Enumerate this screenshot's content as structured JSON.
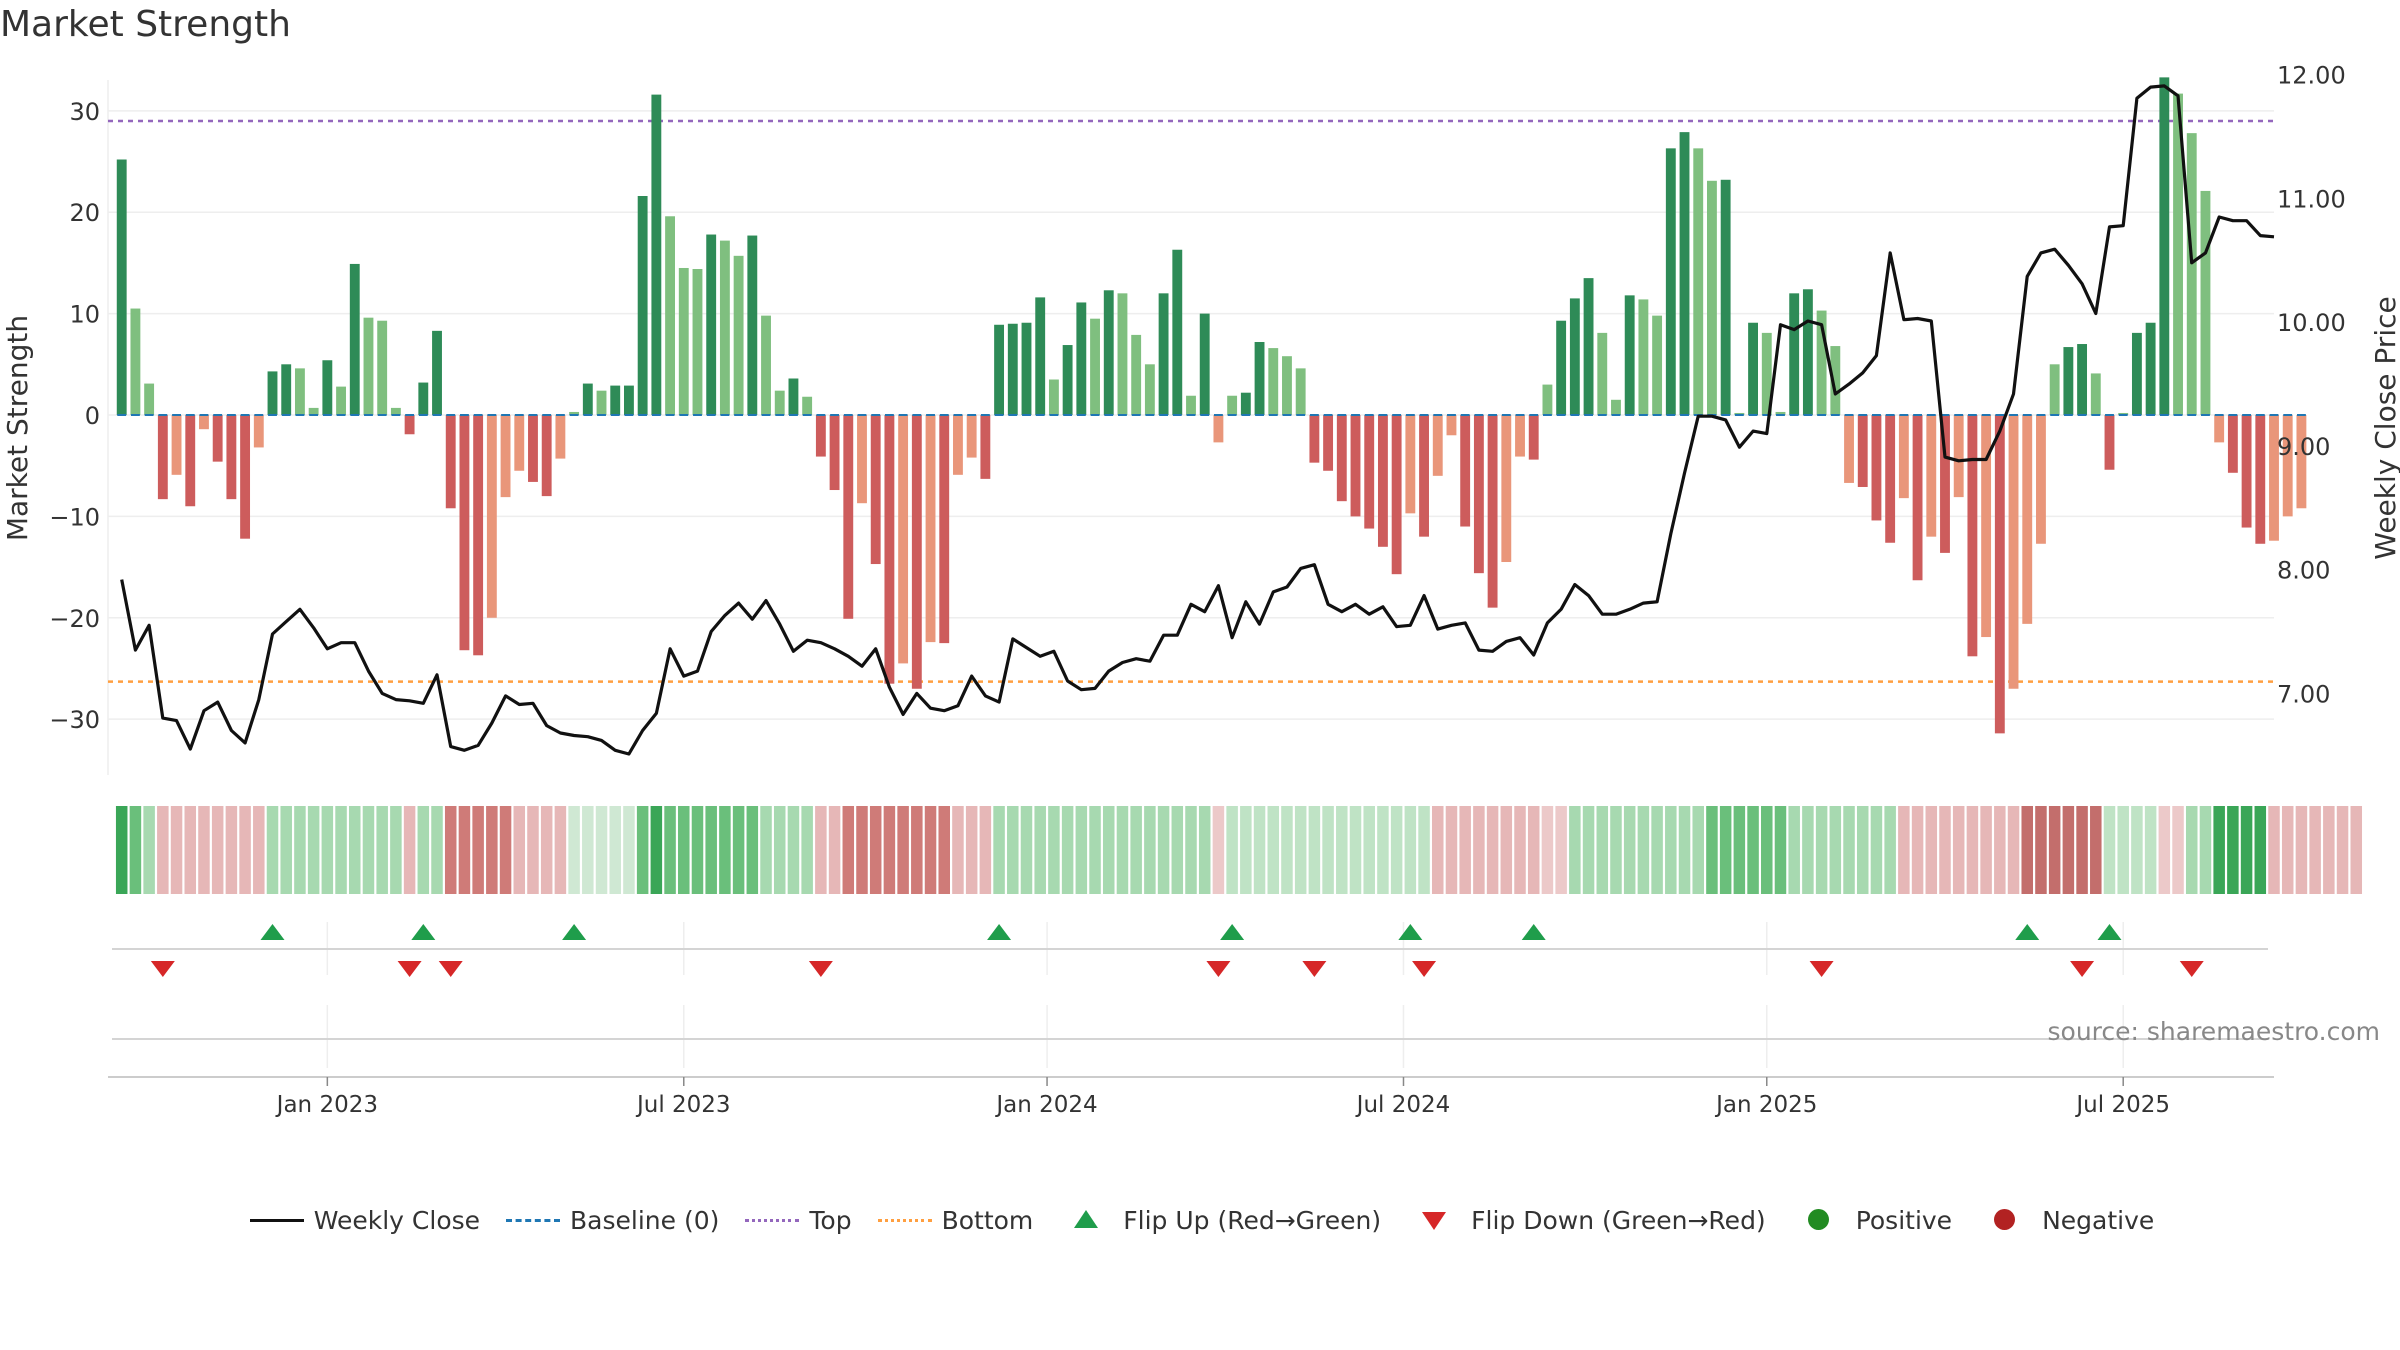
{
  "page": {
    "title": "Market Strength"
  },
  "chart_data": {
    "type": "bar+line",
    "title": "Market Strength",
    "ylabel_left": "Market Strength",
    "ylabel_right": "Weekly Close Price",
    "ylim_left": [
      -36,
      36
    ],
    "ylim_right": [
      6.3,
      12.2
    ],
    "yticks_left": [
      -30,
      -20,
      -10,
      0,
      10,
      20,
      30
    ],
    "ytick_labels_left": [
      "−30",
      "−20",
      "−10",
      "0",
      "10",
      "20",
      "30"
    ],
    "yticks_right": [
      7,
      8,
      9,
      10,
      11,
      12
    ],
    "ytick_labels_right": [
      "7.00",
      "8.00",
      "9.00",
      "10.00",
      "11.00",
      "12.00"
    ],
    "x_range": [
      -1,
      157
    ],
    "x_ticks": [
      15,
      41,
      67.5,
      93.5,
      120,
      146
    ],
    "x_tick_labels": [
      "Jan 2023",
      "Jul 2023",
      "Jan 2024",
      "Jul 2024",
      "Jan 2025",
      "Jul 2025"
    ],
    "top_threshold": 29,
    "bottom_threshold": -26.3,
    "strength": [
      25.2,
      10.5,
      3.1,
      -8.3,
      -5.9,
      -9.0,
      -1.4,
      -4.6,
      -8.3,
      -12.2,
      -3.2,
      4.3,
      5.0,
      4.6,
      0.7,
      5.4,
      2.8,
      14.9,
      9.6,
      9.3,
      0.7,
      -1.9,
      3.2,
      8.3,
      -9.2,
      -23.2,
      -23.7,
      -20.0,
      -8.1,
      -5.5,
      -6.6,
      -8.0,
      -4.3,
      0.3,
      3.1,
      2.4,
      2.9,
      2.9,
      21.6,
      31.6,
      19.6,
      14.5,
      14.4,
      17.8,
      17.2,
      15.7,
      17.7,
      9.8,
      2.4,
      3.6,
      1.8,
      -4.1,
      -7.4,
      -20.1,
      -8.7,
      -14.7,
      -26.5,
      -24.5,
      -27.0,
      -22.4,
      -22.5,
      -5.9,
      -4.2,
      -6.3,
      8.9,
      9.0,
      9.1,
      11.6,
      3.5,
      6.9,
      11.1,
      9.5,
      12.3,
      12.0,
      7.9,
      5.0,
      12.0,
      16.3,
      1.9,
      10.0,
      -2.7,
      1.9,
      2.2,
      7.2,
      6.6,
      5.8,
      4.6,
      -4.7,
      -5.5,
      -8.5,
      -10.0,
      -11.2,
      -13.0,
      -15.7,
      -9.7,
      -12.0,
      -6.0,
      -2.0,
      -11.0,
      -15.6,
      -19.0,
      -14.5,
      -4.1,
      -4.4,
      3.0,
      9.3,
      11.5,
      13.5,
      8.1,
      1.5,
      11.8,
      11.4,
      9.8,
      26.3,
      27.9,
      26.3,
      23.1,
      23.2,
      0.2,
      9.1,
      8.1,
      0.3,
      12.0,
      12.4,
      10.3,
      6.8,
      -6.7,
      -7.1,
      -10.4,
      -12.6,
      -8.2,
      -16.3,
      -12.0,
      -13.6,
      -8.1,
      -23.8,
      -21.9,
      -31.4,
      -27.0,
      -20.6,
      -12.7,
      5.0,
      6.7,
      7.0,
      4.1,
      -5.4,
      0.2,
      8.1,
      9.1,
      33.3,
      31.7,
      27.8,
      22.1,
      -2.7,
      -5.7,
      -11.1,
      -12.7,
      -12.4,
      -10.0,
      -9.2
    ],
    "close": [
      7.92,
      7.35,
      7.55,
      6.8,
      6.78,
      6.55,
      6.86,
      6.93,
      6.7,
      6.6,
      6.95,
      7.48,
      7.58,
      7.68,
      7.53,
      7.36,
      7.41,
      7.41,
      7.18,
      7.0,
      6.95,
      6.94,
      6.92,
      7.15,
      6.57,
      6.54,
      6.58,
      6.76,
      6.98,
      6.91,
      6.92,
      6.74,
      6.68,
      6.66,
      6.65,
      6.62,
      6.54,
      6.51,
      6.7,
      6.84,
      7.36,
      7.14,
      7.18,
      7.5,
      7.63,
      7.73,
      7.6,
      7.75,
      7.56,
      7.34,
      7.43,
      7.41,
      7.36,
      7.3,
      7.22,
      7.36,
      7.05,
      6.83,
      7.0,
      6.88,
      6.86,
      6.9,
      7.14,
      6.98,
      6.93,
      7.44,
      7.37,
      7.3,
      7.34,
      7.1,
      7.03,
      7.04,
      7.18,
      7.25,
      7.28,
      7.26,
      7.47,
      7.47,
      7.72,
      7.66,
      7.87,
      7.45,
      7.74,
      7.56,
      7.82,
      7.86,
      8.01,
      8.04,
      7.72,
      7.66,
      7.72,
      7.64,
      7.7,
      7.54,
      7.55,
      7.79,
      7.52,
      7.55,
      7.57,
      7.35,
      7.34,
      7.42,
      7.45,
      7.31,
      7.57,
      7.68,
      7.88,
      7.79,
      7.64,
      7.64,
      7.68,
      7.73,
      7.74,
      8.29,
      8.78,
      9.24,
      9.24,
      9.21,
      8.99,
      9.12,
      9.1,
      9.98,
      9.94,
      10.01,
      9.98,
      9.42,
      9.5,
      9.59,
      9.73,
      10.56,
      10.02,
      10.03,
      10.01,
      8.91,
      8.88,
      8.89,
      8.89,
      9.12,
      9.42,
      10.37,
      10.56,
      10.59,
      10.46,
      10.31,
      10.07,
      10.77,
      10.78,
      11.81,
      11.9,
      11.91,
      11.83,
      10.48,
      10.56,
      10.85,
      10.82,
      10.82,
      10.7,
      10.69
    ],
    "regime": [
      5,
      4,
      3,
      -2,
      -2,
      -2,
      -2,
      -2,
      -2,
      -2,
      -2,
      3,
      3,
      3,
      3,
      3,
      3,
      3,
      3,
      3,
      3,
      -2,
      3,
      3,
      -3,
      -3,
      -3,
      -3,
      -3,
      -2,
      -2,
      -2,
      -2,
      1,
      1,
      1,
      1,
      1,
      4,
      5,
      4,
      4,
      4,
      4,
      4,
      4,
      4,
      3,
      3,
      3,
      3,
      -2,
      -2,
      -3,
      -3,
      -3,
      -3,
      -3,
      -3,
      -3,
      -3,
      -2,
      -2,
      -2,
      3,
      3,
      3,
      3,
      3,
      3,
      3,
      3,
      3,
      3,
      3,
      3,
      3,
      3,
      3,
      3,
      -1,
      2,
      2,
      2,
      2,
      2,
      2,
      2,
      2,
      2,
      2,
      2,
      2,
      2,
      2,
      2,
      -2,
      -2,
      -2,
      -2,
      -2,
      -2,
      -2,
      -2,
      -1,
      -1,
      3,
      3,
      3,
      3,
      3,
      3,
      3,
      3,
      3,
      3,
      4,
      4,
      4,
      4,
      4,
      4,
      3,
      3,
      3,
      3,
      3,
      3,
      3,
      3,
      -2,
      -2,
      -2,
      -2,
      -2,
      -2,
      -2,
      -2,
      -2,
      -4,
      -4,
      -4,
      -4,
      -4,
      -4,
      2,
      2,
      2,
      2,
      -1,
      -1,
      3,
      3,
      5,
      5,
      5,
      5,
      -2,
      -2,
      -2,
      -2,
      -2,
      -2,
      -2
    ],
    "flip_up_index": [
      11,
      22,
      33,
      64,
      81,
      94,
      103,
      139,
      145
    ],
    "flip_down_index": [
      3,
      21,
      24,
      51,
      80,
      87,
      95,
      124,
      143,
      151
    ],
    "legend": [
      "Weekly Close",
      "Baseline (0)",
      "Top",
      "Bottom",
      "Flip Up (Red→Green)",
      "Flip Down (Green→Red)",
      "Positive",
      "Negative"
    ],
    "annotation": "source: sharemaestro.com"
  },
  "colors": {
    "green_dark": "#2e8b57",
    "green_light": "#7fbf7f",
    "red_dark": "#cd5c5c",
    "red_light": "#e9967a",
    "line": "#111111",
    "baseline": "#1f77b4",
    "top": "#9467bd",
    "bottom": "#ff9f40",
    "flip_up": "#1f9d4b",
    "flip_down": "#d62728",
    "positive": "#228b22",
    "negative": "#b22222"
  }
}
